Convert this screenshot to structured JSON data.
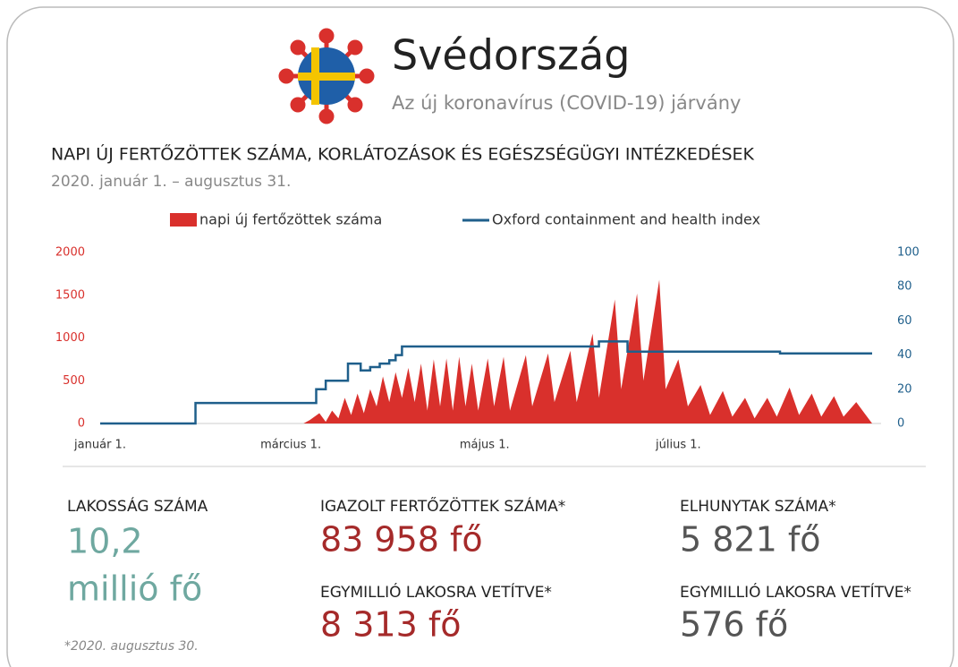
{
  "header": {
    "title": "Svédország",
    "subtitle": "Az új koronavírus (COVID-19) járvány"
  },
  "chart_data": {
    "type": "area-line",
    "title": "NAPI ÚJ FERTŐZÖTTEK SZÁMA, KORLÁTOZÁSOK ÉS EGÉSZSÉGÜGYI INTÉZKEDÉSEK",
    "subtitle": "2020. január 1. – augusztus 31.",
    "xlim": [
      0,
      243
    ],
    "xticks": [
      {
        "value": 0,
        "label": "január 1."
      },
      {
        "value": 60,
        "label": "március 1."
      },
      {
        "value": 121,
        "label": "május 1."
      },
      {
        "value": 182,
        "label": "július 1."
      }
    ],
    "ylim": [
      0,
      2000
    ],
    "yticks": [
      0,
      500,
      1000,
      1500,
      2000
    ],
    "y2lim": [
      0,
      100
    ],
    "y2ticks": [
      0,
      20,
      40,
      60,
      80,
      100
    ],
    "series": [
      {
        "name": "napi új fertőzöttek  száma",
        "color": "#d9302c",
        "x": [
          0,
          64,
          66,
          69,
          71,
          73,
          75,
          77,
          79,
          81,
          83,
          85,
          87,
          89,
          91,
          93,
          95,
          97,
          99,
          101,
          103,
          105,
          107,
          109,
          111,
          113,
          115,
          117,
          119,
          122,
          124,
          127,
          129,
          134,
          136,
          141,
          143,
          148,
          150,
          155,
          157,
          162,
          164,
          169,
          171,
          176,
          178,
          182,
          185,
          189,
          192,
          196,
          199,
          203,
          206,
          210,
          213,
          217,
          220,
          224,
          227,
          231,
          234,
          238,
          241,
          243
        ],
        "values": [
          0,
          0,
          40,
          120,
          20,
          150,
          60,
          300,
          100,
          350,
          120,
          400,
          200,
          550,
          250,
          600,
          300,
          650,
          250,
          700,
          150,
          750,
          200,
          760,
          150,
          780,
          200,
          700,
          150,
          760,
          200,
          780,
          150,
          800,
          200,
          820,
          250,
          850,
          250,
          1050,
          300,
          1450,
          400,
          1520,
          500,
          1680,
          400,
          750,
          200,
          450,
          100,
          380,
          80,
          300,
          60,
          300,
          80,
          420,
          100,
          350,
          80,
          320,
          80,
          250,
          100,
          0
        ]
      },
      {
        "name": "Oxford containment and health index",
        "color": "#1f5f8b",
        "axis": "y2",
        "x": [
          0,
          30,
          30,
          68,
          68,
          71,
          71,
          78,
          78,
          82,
          82,
          85,
          85,
          88,
          88,
          91,
          91,
          93,
          93,
          95,
          95,
          157,
          157,
          166,
          166,
          214,
          214,
          243
        ],
        "values": [
          0,
          0,
          12,
          12,
          20,
          20,
          25,
          25,
          35,
          35,
          31,
          31,
          33,
          33,
          35,
          35,
          37,
          37,
          40,
          40,
          45,
          45,
          48,
          48,
          42,
          42,
          41,
          41
        ]
      }
    ]
  },
  "stats": {
    "population": {
      "label": "LAKOSSÁG SZÁMA",
      "value": "10,2",
      "unit": "millió fő"
    },
    "cases": {
      "label": "IGAZOLT FERTŐZÖTTEK SZÁMA*",
      "value": "83 958 fő",
      "per_million_label": "EGYMILLIÓ LAKOSRA VETÍTVE*",
      "per_million": "8 313 fő"
    },
    "deaths": {
      "label": "ELHUNYTAK SZÁMA*",
      "value": "5 821 fő",
      "per_million_label": "EGYMILLIÓ LAKOSRA VETÍTVE*",
      "per_million": "576 fő"
    },
    "footnote": "*2020. augusztus 30."
  }
}
